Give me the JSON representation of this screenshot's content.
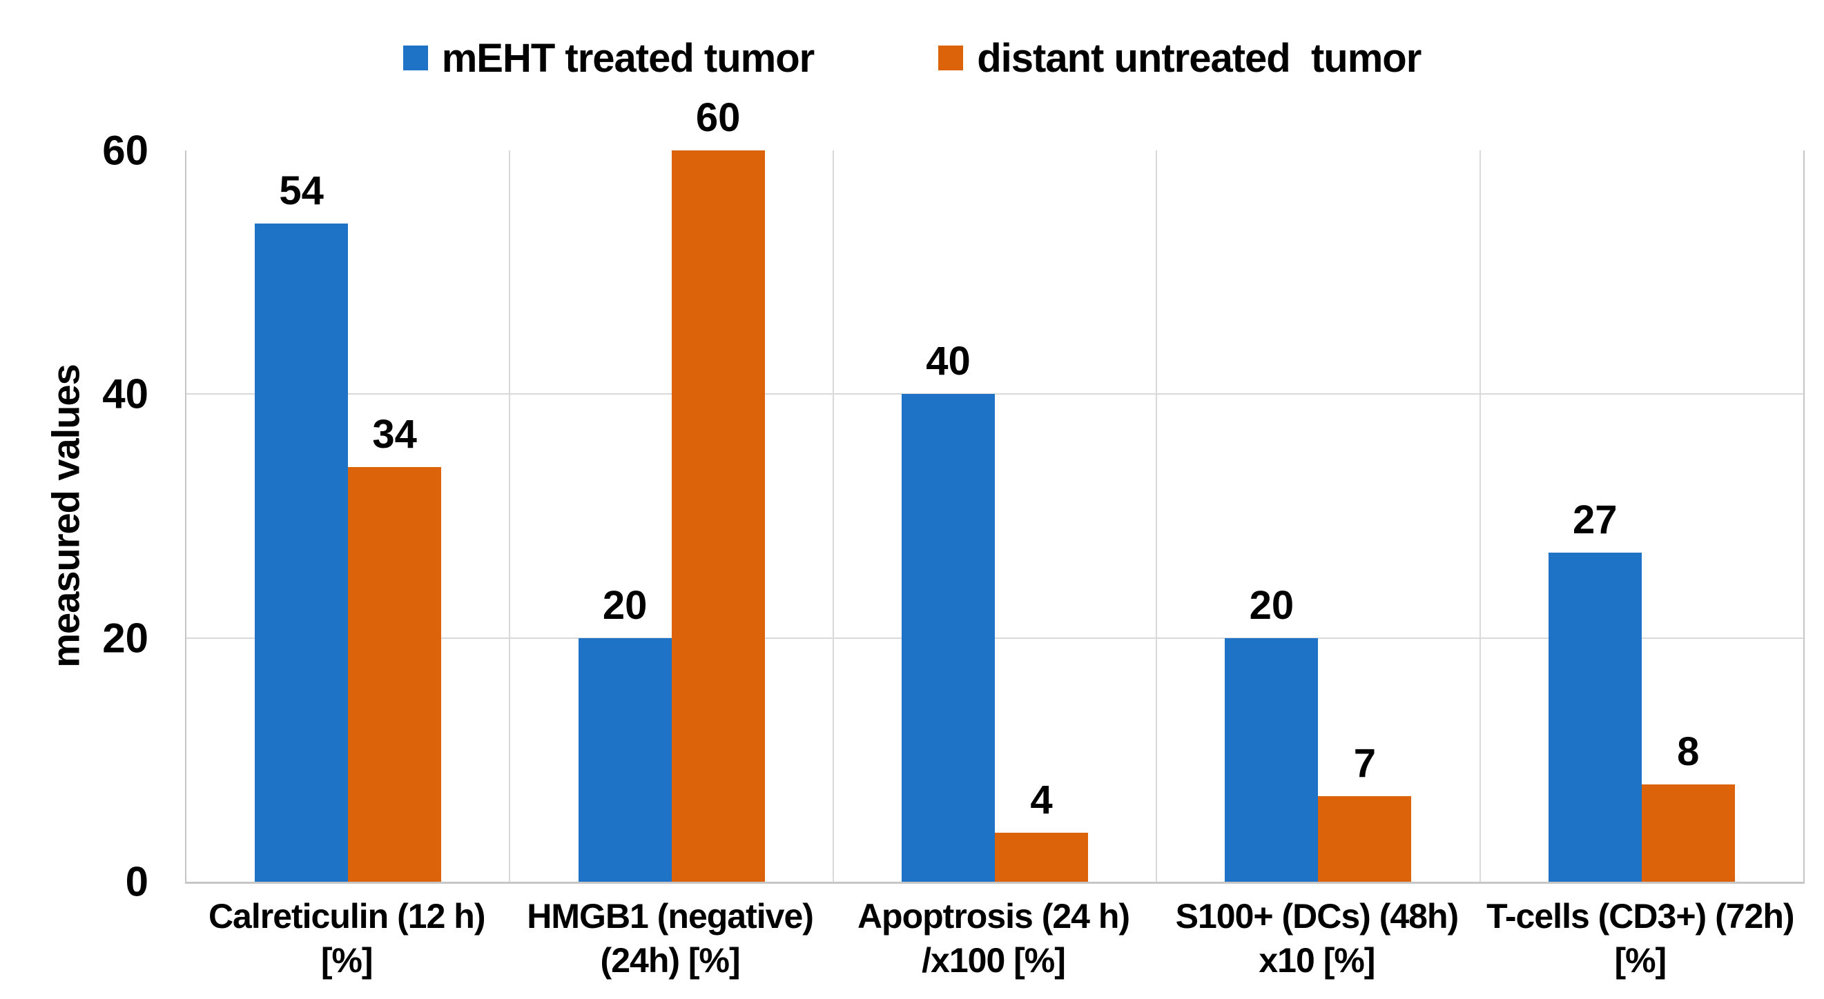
{
  "chart_data": {
    "type": "bar",
    "title": "",
    "ylabel": "measured values",
    "xlabel": "",
    "ylim": [
      0,
      60
    ],
    "yticks": [
      0,
      20,
      40,
      60
    ],
    "gridline_values": [
      20,
      40
    ],
    "grid": true,
    "legend_position": "top-center",
    "categories": [
      [
        "Calreticulin (12 h)",
        "[%]"
      ],
      [
        "HMGB1 (negative)",
        "(24h) [%]"
      ],
      [
        "Apoptrosis (24 h)",
        "/x100 [%]"
      ],
      [
        "S100+ (DCs) (48h)",
        "x10 [%]"
      ],
      [
        "T-cells (CD3+) (72h)",
        "[%]"
      ]
    ],
    "series": [
      {
        "name": "mEHT treated tumor",
        "color": "#1F73C6",
        "values": [
          54,
          20,
          40,
          20,
          27
        ]
      },
      {
        "name": "distant untreated  tumor",
        "color": "#DC6309",
        "values": [
          34,
          60,
          4,
          7,
          8
        ]
      }
    ]
  },
  "legend": {
    "item1": "mEHT treated tumor",
    "item2": "distant untreated  tumor"
  },
  "colors": {
    "series1": "#1F73C6",
    "series2": "#DC6309",
    "gridline": "#d9d9d9",
    "axis_border": "#c6c6c6",
    "text": "#000000",
    "background": "#ffffff"
  }
}
